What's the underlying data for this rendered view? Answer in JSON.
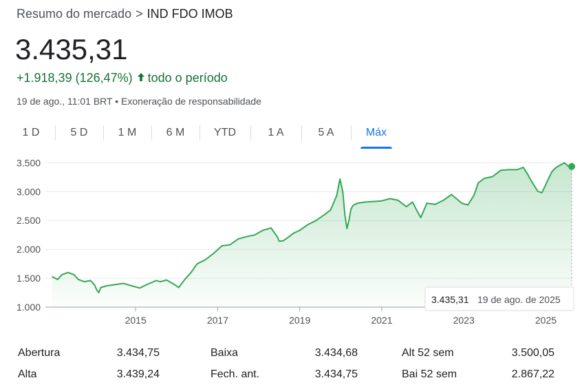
{
  "breadcrumb": {
    "parent": "Resumo do mercado",
    "separator": ">",
    "current": "IND FDO IMOB"
  },
  "price": "3.435,31",
  "change": {
    "text": "+1.918,39 (126,47%)",
    "period": "todo o período",
    "color": "#137333"
  },
  "meta": {
    "timestamp": "19 de ago., 11:01 BRT",
    "bullet": "•",
    "disclaimer": "Exoneração de responsabilidade"
  },
  "tabs": [
    {
      "label": "1 D",
      "active": false
    },
    {
      "label": "5 D",
      "active": false
    },
    {
      "label": "1 M",
      "active": false
    },
    {
      "label": "6 M",
      "active": false
    },
    {
      "label": "YTD",
      "active": false
    },
    {
      "label": "1 A",
      "active": false
    },
    {
      "label": "5 A",
      "active": false
    },
    {
      "label": "Máx",
      "active": true
    }
  ],
  "tooltip": {
    "value": "3.435,31",
    "date": "19 de ago. de 2025"
  },
  "chart_data": {
    "type": "area",
    "xlabel": "",
    "ylabel": "",
    "ylim": [
      1000,
      3600
    ],
    "xlim": [
      2012.8,
      2025.68
    ],
    "yticks": [
      1000,
      1500,
      2000,
      2500,
      3000,
      3500
    ],
    "ytick_labels": [
      "1.000",
      "1.500",
      "2.000",
      "2.500",
      "3.000",
      "3.500"
    ],
    "xticks": [
      2015,
      2017,
      2019,
      2021,
      2023,
      2025
    ],
    "xtick_labels": [
      "2015",
      "2017",
      "2019",
      "2021",
      "2023",
      "2025"
    ],
    "grid": "horizontal",
    "line_color": "#34a853",
    "series": [
      {
        "x": [
          2012.96,
          2013.1,
          2013.2,
          2013.35,
          2013.5,
          2013.6,
          2013.75,
          2013.9,
          2014.0,
          2014.05,
          2014.1,
          2014.15,
          2014.3,
          2014.5,
          2014.7,
          2014.9,
          2015.1,
          2015.3,
          2015.5,
          2015.6,
          2015.75,
          2015.95,
          2016.05,
          2016.2,
          2016.35,
          2016.5,
          2016.7,
          2016.9,
          2017.1,
          2017.3,
          2017.5,
          2017.7,
          2017.9,
          2018.1,
          2018.3,
          2018.45,
          2018.5,
          2018.6,
          2018.7,
          2018.85,
          2019.0,
          2019.2,
          2019.4,
          2019.6,
          2019.75,
          2019.9,
          2019.98,
          2020.05,
          2020.1,
          2020.15,
          2020.2,
          2020.25,
          2020.3,
          2020.4,
          2020.6,
          2020.8,
          2021.0,
          2021.2,
          2021.4,
          2021.6,
          2021.75,
          2021.85,
          2021.95,
          2022.1,
          2022.3,
          2022.5,
          2022.7,
          2022.85,
          2022.95,
          2023.1,
          2023.25,
          2023.35,
          2023.5,
          2023.7,
          2023.9,
          2024.1,
          2024.3,
          2024.45,
          2024.55,
          2024.65,
          2024.8,
          2024.9,
          2024.95,
          2025.05,
          2025.15,
          2025.25,
          2025.35,
          2025.45,
          2025.55,
          2025.63
        ],
        "y": [
          1530,
          1480,
          1560,
          1600,
          1560,
          1480,
          1440,
          1460,
          1380,
          1300,
          1250,
          1340,
          1370,
          1390,
          1410,
          1370,
          1330,
          1400,
          1460,
          1440,
          1470,
          1390,
          1340,
          1480,
          1600,
          1750,
          1820,
          1930,
          2060,
          2080,
          2180,
          2220,
          2250,
          2330,
          2370,
          2220,
          2140,
          2150,
          2200,
          2280,
          2330,
          2430,
          2500,
          2600,
          2680,
          2930,
          3220,
          3000,
          2600,
          2360,
          2500,
          2700,
          2760,
          2800,
          2820,
          2830,
          2840,
          2880,
          2850,
          2740,
          2820,
          2680,
          2550,
          2800,
          2780,
          2850,
          2950,
          2860,
          2800,
          2770,
          2940,
          3150,
          3230,
          3260,
          3370,
          3380,
          3380,
          3420,
          3310,
          3180,
          3010,
          2980,
          3050,
          3200,
          3350,
          3420,
          3460,
          3500,
          3440,
          3435.31
        ]
      }
    ],
    "current_point": {
      "x": 2025.63,
      "y": 3435.31
    }
  },
  "stats": {
    "rows": [
      [
        {
          "label": "Abertura",
          "value": "3.434,75"
        },
        {
          "label": "Baixa",
          "value": "3.434,68"
        },
        {
          "label": "Alt 52 sem",
          "value": "3.500,05"
        }
      ],
      [
        {
          "label": "Alta",
          "value": "3.439,24"
        },
        {
          "label": "Fech. ant.",
          "value": "3.434,75"
        },
        {
          "label": "Bai 52 sem",
          "value": "2.867,22"
        }
      ]
    ]
  }
}
